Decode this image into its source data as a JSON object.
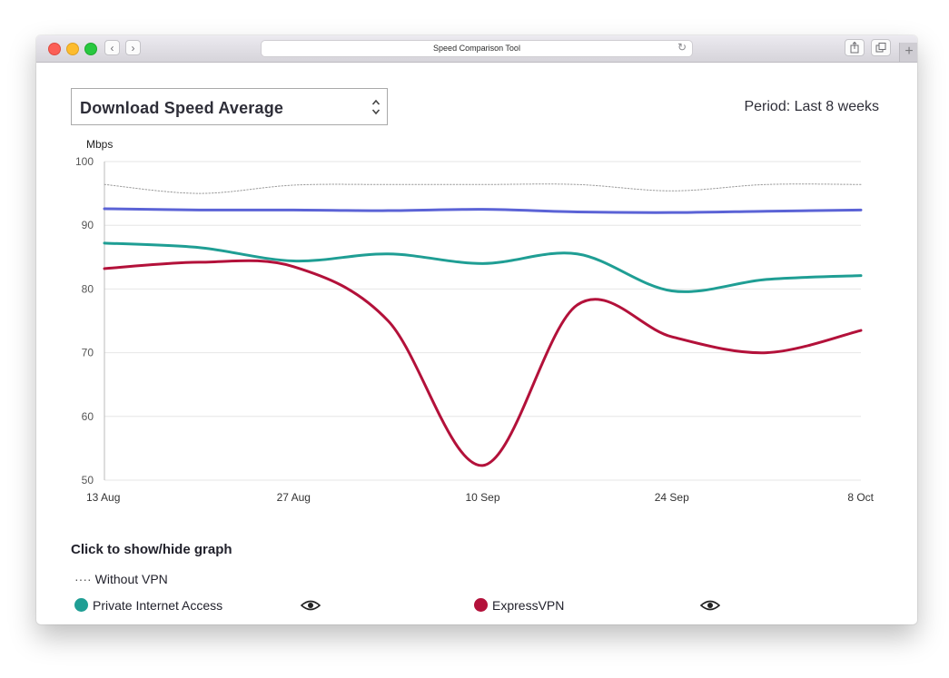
{
  "browser": {
    "url_title": "Speed Comparison Tool",
    "back_glyph": "‹",
    "forward_glyph": "›",
    "reload_glyph": "↻",
    "new_tab_glyph": "+"
  },
  "controls": {
    "metric_selected": "Download Speed Average",
    "period_label": "Period: Last 8 weeks"
  },
  "chart_data": {
    "type": "line",
    "ylabel": "Mbps",
    "ylim": [
      50,
      100
    ],
    "yticks": [
      "100",
      "90",
      "80",
      "70",
      "60",
      "50"
    ],
    "xticks": [
      "13 Aug",
      "27 Aug",
      "10 Sep",
      "24 Sep",
      "8 Oct"
    ],
    "x": [
      0,
      7,
      14,
      21,
      28,
      35,
      42,
      49,
      56
    ],
    "grid": true,
    "series": [
      {
        "name": "Without VPN",
        "color": "#9a9a9a",
        "style": "dotted",
        "values": [
          96.4,
          95.0,
          96.3,
          96.4,
          96.4,
          96.4,
          95.4,
          96.4,
          96.4
        ]
      },
      {
        "color": "#5b63d6",
        "style": "solid",
        "values": [
          92.6,
          92.4,
          92.4,
          92.3,
          92.5,
          92.1,
          92.0,
          92.2,
          92.4
        ]
      },
      {
        "name": "Private Internet Access",
        "color": "#1f9e94",
        "style": "solid",
        "values": [
          87.2,
          86.5,
          84.4,
          85.5,
          84.0,
          85.5,
          79.7,
          81.5,
          82.1
        ]
      },
      {
        "name": "ExpressVPN",
        "color": "#b3113a",
        "style": "solid",
        "values": [
          83.2,
          84.2,
          83.5,
          75.0,
          52.3,
          77.5,
          72.5,
          70.0,
          73.5
        ]
      }
    ]
  },
  "legend": {
    "title": "Click to show/hide graph",
    "dots_glyph": "····",
    "without_vpn": "Without VPN",
    "items": [
      {
        "label": "Private Internet Access",
        "color": "#1f9e94",
        "icon": "eye-icon"
      },
      {
        "label": "ExpressVPN",
        "color": "#b3113a",
        "icon": "eye-icon"
      }
    ]
  }
}
